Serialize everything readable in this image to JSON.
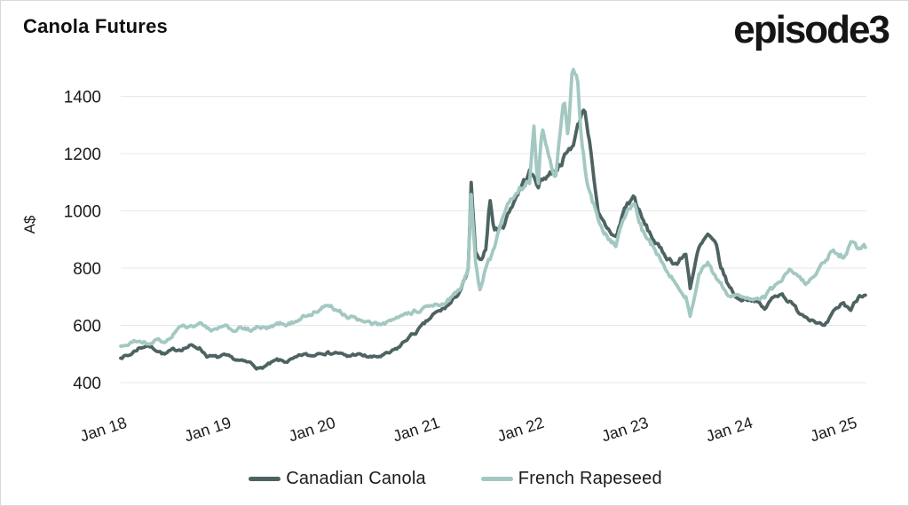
{
  "header": {
    "title": "Canola Futures",
    "logo": "episode3"
  },
  "chart_data": {
    "type": "line",
    "title": "Canola Futures",
    "xlabel": "",
    "ylabel": "A$",
    "grid": "horizontal",
    "legend_position": "bottom",
    "ylim": [
      400,
      1500
    ],
    "yticks": [
      400,
      600,
      800,
      1000,
      1200,
      1400
    ],
    "xticks": [
      "Jan 18",
      "Jan 19",
      "Jan 20",
      "Jan 21",
      "Jan 22",
      "Jan 23",
      "Jan 24",
      "Jan 25"
    ],
    "xtick_years": [
      2018,
      2019,
      2020,
      2021,
      2022,
      2023,
      2024,
      2025
    ],
    "x_range_years": [
      2018.0,
      2025.15
    ],
    "series": [
      {
        "name": "Canadian Canola",
        "color": "#4d6361",
        "points": [
          [
            2018.0,
            490
          ],
          [
            2018.08,
            495
          ],
          [
            2018.17,
            520
          ],
          [
            2018.25,
            530
          ],
          [
            2018.33,
            518
          ],
          [
            2018.42,
            498
          ],
          [
            2018.5,
            513
          ],
          [
            2018.58,
            518
          ],
          [
            2018.67,
            528
          ],
          [
            2018.75,
            523
          ],
          [
            2018.83,
            493
          ],
          [
            2018.92,
            488
          ],
          [
            2019.0,
            493
          ],
          [
            2019.08,
            483
          ],
          [
            2019.17,
            473
          ],
          [
            2019.25,
            468
          ],
          [
            2019.33,
            448
          ],
          [
            2019.42,
            463
          ],
          [
            2019.5,
            478
          ],
          [
            2019.58,
            473
          ],
          [
            2019.67,
            483
          ],
          [
            2019.75,
            498
          ],
          [
            2019.83,
            493
          ],
          [
            2019.92,
            508
          ],
          [
            2020.0,
            503
          ],
          [
            2020.08,
            505
          ],
          [
            2020.17,
            490
          ],
          [
            2020.25,
            500
          ],
          [
            2020.33,
            493
          ],
          [
            2020.42,
            488
          ],
          [
            2020.5,
            493
          ],
          [
            2020.58,
            503
          ],
          [
            2020.67,
            524
          ],
          [
            2020.75,
            555
          ],
          [
            2020.83,
            576
          ],
          [
            2020.92,
            607
          ],
          [
            2021.0,
            637
          ],
          [
            2021.08,
            654
          ],
          [
            2021.17,
            679
          ],
          [
            2021.25,
            720
          ],
          [
            2021.33,
            780
          ],
          [
            2021.36,
            1090
          ],
          [
            2021.4,
            855
          ],
          [
            2021.44,
            815
          ],
          [
            2021.5,
            870
          ],
          [
            2021.54,
            1045
          ],
          [
            2021.58,
            930
          ],
          [
            2021.67,
            950
          ],
          [
            2021.75,
            1020
          ],
          [
            2021.83,
            1080
          ],
          [
            2021.92,
            1135
          ],
          [
            2022.0,
            1092
          ],
          [
            2022.08,
            1123
          ],
          [
            2022.17,
            1144
          ],
          [
            2022.25,
            1185
          ],
          [
            2022.33,
            1227
          ],
          [
            2022.38,
            1290
          ],
          [
            2022.44,
            1368
          ],
          [
            2022.48,
            1280
          ],
          [
            2022.5,
            1247
          ],
          [
            2022.54,
            1090
          ],
          [
            2022.58,
            979
          ],
          [
            2022.67,
            937
          ],
          [
            2022.75,
            906
          ],
          [
            2022.83,
            1010
          ],
          [
            2022.92,
            1051
          ],
          [
            2023.0,
            968
          ],
          [
            2023.08,
            917
          ],
          [
            2023.17,
            865
          ],
          [
            2023.25,
            834
          ],
          [
            2023.33,
            815
          ],
          [
            2023.42,
            850
          ],
          [
            2023.46,
            735
          ],
          [
            2023.54,
            865
          ],
          [
            2023.63,
            915
          ],
          [
            2023.71,
            874
          ],
          [
            2023.75,
            808
          ],
          [
            2023.83,
            736
          ],
          [
            2023.92,
            690
          ],
          [
            2024.0,
            695
          ],
          [
            2024.08,
            690
          ],
          [
            2024.17,
            655
          ],
          [
            2024.25,
            695
          ],
          [
            2024.33,
            715
          ],
          [
            2024.42,
            679
          ],
          [
            2024.5,
            648
          ],
          [
            2024.58,
            630
          ],
          [
            2024.67,
            615
          ],
          [
            2024.75,
            592
          ],
          [
            2024.83,
            641
          ],
          [
            2024.92,
            679
          ],
          [
            2025.0,
            655
          ],
          [
            2025.08,
            705
          ],
          [
            2025.15,
            715
          ]
        ]
      },
      {
        "name": "French Rapeseed",
        "color": "#a3c8c2",
        "points": [
          [
            2018.0,
            525
          ],
          [
            2018.08,
            535
          ],
          [
            2018.17,
            548
          ],
          [
            2018.25,
            538
          ],
          [
            2018.33,
            545
          ],
          [
            2018.42,
            543
          ],
          [
            2018.5,
            569
          ],
          [
            2018.58,
            594
          ],
          [
            2018.67,
            600
          ],
          [
            2018.75,
            605
          ],
          [
            2018.83,
            589
          ],
          [
            2018.92,
            584
          ],
          [
            2019.0,
            595
          ],
          [
            2019.08,
            584
          ],
          [
            2019.17,
            589
          ],
          [
            2019.25,
            584
          ],
          [
            2019.33,
            595
          ],
          [
            2019.42,
            590
          ],
          [
            2019.5,
            610
          ],
          [
            2019.58,
            605
          ],
          [
            2019.67,
            615
          ],
          [
            2019.75,
            628
          ],
          [
            2019.83,
            643
          ],
          [
            2019.92,
            658
          ],
          [
            2020.0,
            668
          ],
          [
            2020.08,
            654
          ],
          [
            2020.17,
            632
          ],
          [
            2020.25,
            622
          ],
          [
            2020.33,
            612
          ],
          [
            2020.42,
            602
          ],
          [
            2020.5,
            607
          ],
          [
            2020.58,
            612
          ],
          [
            2020.67,
            627
          ],
          [
            2020.75,
            637
          ],
          [
            2020.83,
            648
          ],
          [
            2020.92,
            659
          ],
          [
            2021.0,
            664
          ],
          [
            2021.08,
            679
          ],
          [
            2021.17,
            695
          ],
          [
            2021.25,
            726
          ],
          [
            2021.33,
            790
          ],
          [
            2021.36,
            1060
          ],
          [
            2021.4,
            835
          ],
          [
            2021.44,
            720
          ],
          [
            2021.5,
            800
          ],
          [
            2021.58,
            862
          ],
          [
            2021.67,
            990
          ],
          [
            2021.75,
            1040
          ],
          [
            2021.83,
            1085
          ],
          [
            2021.92,
            1100
          ],
          [
            2021.96,
            1300
          ],
          [
            2022.0,
            1082
          ],
          [
            2022.04,
            1310
          ],
          [
            2022.08,
            1237
          ],
          [
            2022.17,
            1113
          ],
          [
            2022.25,
            1392
          ],
          [
            2022.29,
            1260
          ],
          [
            2022.33,
            1488
          ],
          [
            2022.38,
            1455
          ],
          [
            2022.42,
            1240
          ],
          [
            2022.46,
            1120
          ],
          [
            2022.5,
            1072
          ],
          [
            2022.58,
            958
          ],
          [
            2022.67,
            906
          ],
          [
            2022.75,
            886
          ],
          [
            2022.83,
            979
          ],
          [
            2022.92,
            1030
          ],
          [
            2023.0,
            937
          ],
          [
            2023.08,
            886
          ],
          [
            2023.17,
            834
          ],
          [
            2023.25,
            782
          ],
          [
            2023.33,
            740
          ],
          [
            2023.42,
            700
          ],
          [
            2023.46,
            630
          ],
          [
            2023.54,
            772
          ],
          [
            2023.63,
            818
          ],
          [
            2023.71,
            762
          ],
          [
            2023.75,
            746
          ],
          [
            2023.83,
            700
          ],
          [
            2023.92,
            710
          ],
          [
            2024.0,
            695
          ],
          [
            2024.08,
            700
          ],
          [
            2024.17,
            700
          ],
          [
            2024.25,
            728
          ],
          [
            2024.33,
            752
          ],
          [
            2024.42,
            790
          ],
          [
            2024.5,
            768
          ],
          [
            2024.58,
            750
          ],
          [
            2024.67,
            777
          ],
          [
            2024.75,
            820
          ],
          [
            2024.83,
            860
          ],
          [
            2024.92,
            840
          ],
          [
            2025.0,
            885
          ],
          [
            2025.08,
            865
          ],
          [
            2025.15,
            872
          ]
        ]
      }
    ]
  }
}
